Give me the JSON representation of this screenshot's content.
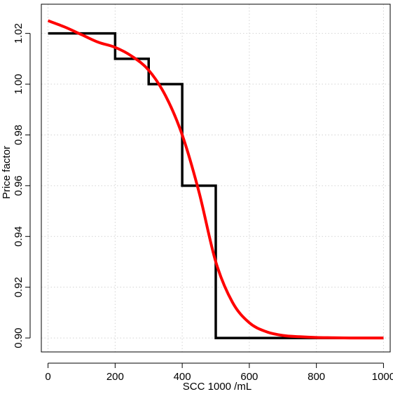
{
  "chart_data": {
    "type": "line",
    "title": "",
    "xlabel": "SCC 1000 /mL",
    "ylabel": "Price factor",
    "xlim": [
      -20,
      1020
    ],
    "ylim": [
      0.8945,
      1.0315
    ],
    "grid": true,
    "legend": "none",
    "x_ticks": [
      0,
      200,
      400,
      600,
      800,
      1000
    ],
    "x_tick_labels": [
      "0",
      "200",
      "400",
      "600",
      "800",
      "1000"
    ],
    "y_ticks": [
      0.9,
      0.92,
      0.94,
      0.96,
      0.98,
      1.0,
      1.02
    ],
    "y_tick_labels": [
      "0.90",
      "0.92",
      "0.94",
      "0.96",
      "0.98",
      "1.00",
      "1.02"
    ],
    "series": [
      {
        "style": "step",
        "color": "#000000",
        "x": [
          0,
          200,
          200,
          300,
          300,
          400,
          400,
          500,
          500,
          1000
        ],
        "y": [
          1.02,
          1.02,
          1.01,
          1.01,
          1.0,
          1.0,
          0.96,
          0.96,
          0.9,
          0.9
        ]
      },
      {
        "style": "smooth",
        "color": "#ff0000",
        "x": [
          0,
          50,
          100,
          150,
          200,
          250,
          300,
          350,
          400,
          450,
          500,
          550,
          600,
          650,
          700,
          750,
          800,
          850,
          900,
          950,
          1000
        ],
        "y": [
          1.025,
          1.0225,
          1.0195,
          1.0165,
          1.0145,
          1.011,
          1.0055,
          0.9955,
          0.98,
          0.9575,
          0.93,
          0.914,
          0.906,
          0.9025,
          0.901,
          0.9005,
          0.9002,
          0.9001,
          0.9,
          0.9,
          0.9
        ]
      }
    ]
  }
}
